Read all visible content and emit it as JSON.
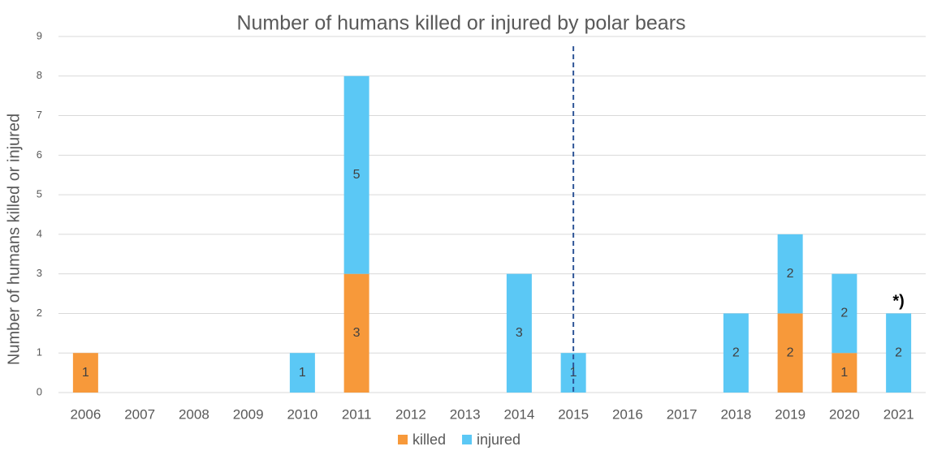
{
  "chart_data": {
    "type": "stacked_bar",
    "title": "Number of humans killed or injured by polar bears",
    "y_label": "Number of humans killed or injured",
    "categories": [
      "2006",
      "2007",
      "2008",
      "2009",
      "2010",
      "2011",
      "2012",
      "2013",
      "2014",
      "2015",
      "2016",
      "2017",
      "2018",
      "2019",
      "2020",
      "2021"
    ],
    "series": [
      {
        "name": "killed",
        "color": "#f7993a",
        "values": [
          1,
          0,
          0,
          0,
          0,
          3,
          0,
          0,
          0,
          0,
          0,
          0,
          0,
          2,
          1,
          0
        ]
      },
      {
        "name": "injured",
        "color": "#5bc8f5",
        "values": [
          0,
          0,
          0,
          0,
          1,
          5,
          0,
          0,
          3,
          1,
          0,
          0,
          2,
          2,
          2,
          2
        ]
      }
    ],
    "ylim": [
      0,
      9
    ],
    "yticks": [
      0,
      1,
      2,
      3,
      4,
      5,
      6,
      7,
      8,
      9
    ],
    "grid": true,
    "legend": "bottom",
    "vline_at": "2015",
    "annotations": [
      {
        "text": "*)",
        "category": "2021"
      }
    ]
  }
}
